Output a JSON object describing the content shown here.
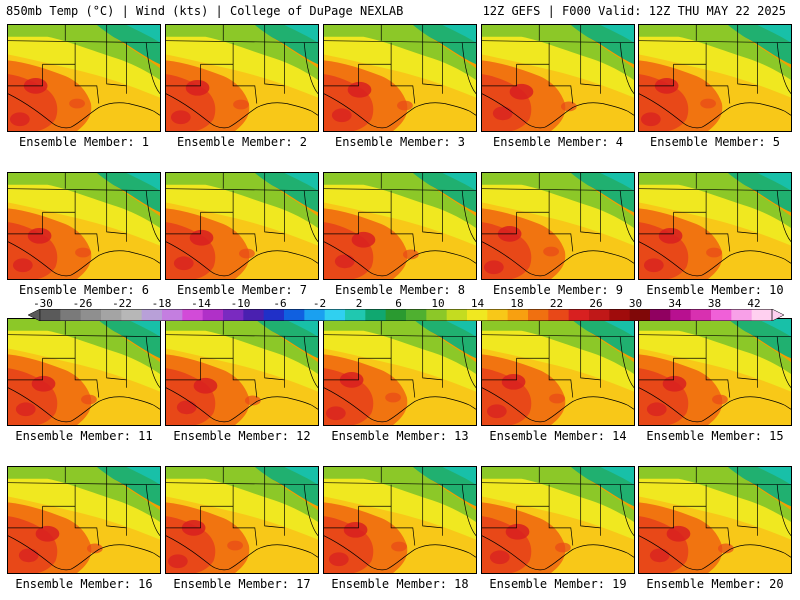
{
  "header": {
    "left": "850mb Temp (°C) | Wind (kts) | College of DuPage NEXLAB",
    "right": "12Z GEFS | F000 Valid: 12Z THU MAY 22 2025"
  },
  "panels": [
    {
      "label": "Ensemble Member: 1"
    },
    {
      "label": "Ensemble Member: 2"
    },
    {
      "label": "Ensemble Member: 3"
    },
    {
      "label": "Ensemble Member: 4"
    },
    {
      "label": "Ensemble Member: 5"
    },
    {
      "label": "Ensemble Member: 6"
    },
    {
      "label": "Ensemble Member: 7"
    },
    {
      "label": "Ensemble Member: 8"
    },
    {
      "label": "Ensemble Member: 9"
    },
    {
      "label": "Ensemble Member: 10"
    },
    {
      "label": "Ensemble Member: 11"
    },
    {
      "label": "Ensemble Member: 12"
    },
    {
      "label": "Ensemble Member: 13"
    },
    {
      "label": "Ensemble Member: 14"
    },
    {
      "label": "Ensemble Member: 15"
    },
    {
      "label": "Ensemble Member: 16"
    },
    {
      "label": "Ensemble Member: 17"
    },
    {
      "label": "Ensemble Member: 18"
    },
    {
      "label": "Ensemble Member: 19"
    },
    {
      "label": "Ensemble Member: 20"
    }
  ],
  "colorbar": {
    "tick_labels": [
      "-30",
      "-26",
      "-22",
      "-18",
      "-14",
      "-10",
      "-6",
      "-2",
      "2",
      "6",
      "10",
      "14",
      "18",
      "22",
      "26",
      "30",
      "34",
      "38",
      "42"
    ],
    "colors": [
      "#5a5a5a",
      "#7a7a7a",
      "#8f8f8f",
      "#a4a4a4",
      "#b7b7b7",
      "#b8a0d8",
      "#c47ee0",
      "#d24bd8",
      "#b030c8",
      "#7a2ac0",
      "#4a20b0",
      "#2030c8",
      "#1060e0",
      "#1aa0f0",
      "#30d0f0",
      "#20c8b0",
      "#10a870",
      "#2a9a30",
      "#4fb030",
      "#8cc828",
      "#c4dc20",
      "#f0e820",
      "#f8c818",
      "#f8a010",
      "#f07010",
      "#e84818",
      "#d82020",
      "#c01818",
      "#a00c0c",
      "#800808",
      "#900060",
      "#b81090",
      "#d830b0",
      "#f060d8",
      "#f8a0e8",
      "#ffd0f0"
    ]
  },
  "icons": {
    "map": "temperature-map-icon"
  }
}
